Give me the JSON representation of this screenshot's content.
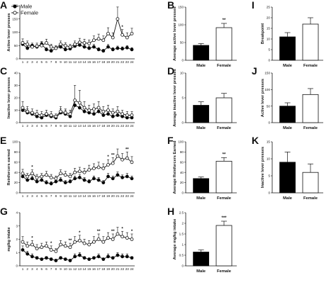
{
  "legend": [
    {
      "label": "Male",
      "marker": "filled-circle"
    },
    {
      "label": "Female",
      "marker": "open-circle"
    }
  ],
  "colors": {
    "male": "#000000",
    "female": "#ffffff",
    "axis": "#111111"
  },
  "chart_data": [
    {
      "panel": "A",
      "type": "line",
      "ylabel": "Active lever presses",
      "x": [
        1,
        2,
        3,
        4,
        5,
        6,
        7,
        8,
        9,
        10,
        11,
        12,
        13,
        14,
        15,
        16,
        17,
        18,
        19,
        20,
        21,
        22,
        23,
        24
      ],
      "ylim": [
        0,
        200
      ],
      "yticks": [
        0,
        50,
        100,
        150,
        200
      ],
      "series": [
        {
          "name": "Male",
          "values": [
            55,
            40,
            50,
            45,
            55,
            35,
            30,
            40,
            45,
            35,
            38,
            48,
            52,
            45,
            40,
            45,
            35,
            30,
            45,
            35,
            40,
            38,
            42,
            35
          ],
          "errors": [
            10,
            8,
            9,
            8,
            10,
            7,
            6,
            8,
            9,
            7,
            8,
            9,
            10,
            9,
            8,
            9,
            7,
            6,
            9,
            7,
            8,
            7,
            8,
            7
          ]
        },
        {
          "name": "Female",
          "values": [
            60,
            55,
            45,
            48,
            50,
            60,
            45,
            40,
            55,
            50,
            45,
            55,
            62,
            60,
            58,
            70,
            75,
            70,
            95,
            80,
            150,
            90,
            80,
            95
          ],
          "errors": [
            15,
            12,
            10,
            11,
            12,
            14,
            10,
            9,
            12,
            11,
            10,
            12,
            15,
            14,
            13,
            16,
            18,
            16,
            22,
            18,
            45,
            20,
            18,
            20
          ]
        }
      ],
      "annotations": [
        {
          "x": 22,
          "text": "*"
        }
      ]
    },
    {
      "panel": "B",
      "type": "bar",
      "ylabel": "Average active lever presses",
      "categories": [
        "Male",
        "Female"
      ],
      "values": [
        42,
        92
      ],
      "errors": [
        5,
        12
      ],
      "ylim": [
        0,
        150
      ],
      "yticks": [
        0,
        50,
        100,
        150
      ],
      "annotation": "**"
    },
    {
      "panel": "C",
      "type": "line",
      "ylabel": "Inactive lever presses",
      "x": [
        1,
        2,
        3,
        4,
        5,
        6,
        7,
        8,
        9,
        10,
        11,
        12,
        13,
        14,
        15,
        16,
        17,
        18,
        19,
        20,
        21,
        22,
        23,
        24
      ],
      "ylim": [
        0,
        40
      ],
      "yticks": [
        0,
        10,
        20,
        30,
        40
      ],
      "series": [
        {
          "name": "Male",
          "values": [
            10,
            8,
            7,
            5,
            4,
            6,
            5,
            4,
            8,
            7,
            5,
            14,
            12,
            9,
            8,
            7,
            9,
            6,
            7,
            5,
            6,
            5,
            4,
            4
          ],
          "errors": [
            3,
            3,
            2,
            2,
            2,
            2,
            2,
            2,
            3,
            3,
            2,
            4,
            4,
            3,
            3,
            2,
            3,
            2,
            3,
            2,
            2,
            2,
            2,
            2
          ]
        },
        {
          "name": "Female",
          "values": [
            12,
            9,
            8,
            7,
            6,
            7,
            6,
            5,
            9,
            8,
            7,
            18,
            16,
            12,
            10,
            11,
            12,
            9,
            10,
            8,
            9,
            7,
            6,
            6
          ],
          "errors": [
            5,
            4,
            3,
            3,
            3,
            3,
            3,
            2,
            4,
            3,
            3,
            12,
            10,
            5,
            4,
            4,
            5,
            4,
            4,
            3,
            4,
            3,
            3,
            3
          ]
        }
      ],
      "annotations": []
    },
    {
      "panel": "D",
      "type": "bar",
      "ylabel": "Average inactive lever presses",
      "categories": [
        "Male",
        "Female"
      ],
      "values": [
        3.5,
        5
      ],
      "errors": [
        0.7,
        0.9
      ],
      "ylim": [
        0,
        10
      ],
      "yticks": [
        0,
        5,
        10
      ],
      "annotation": ""
    },
    {
      "panel": "E",
      "type": "line",
      "ylabel": "Reinforcers earned",
      "x": [
        1,
        2,
        3,
        4,
        5,
        6,
        7,
        8,
        9,
        10,
        11,
        12,
        13,
        14,
        15,
        16,
        17,
        18,
        19,
        20,
        21,
        22,
        23,
        24
      ],
      "ylim": [
        0,
        100
      ],
      "yticks": [
        0,
        20,
        40,
        60,
        80,
        100
      ],
      "series": [
        {
          "name": "Male",
          "values": [
            32,
            25,
            28,
            22,
            25,
            20,
            18,
            22,
            25,
            20,
            22,
            28,
            30,
            25,
            22,
            28,
            25,
            20,
            32,
            28,
            35,
            30,
            32,
            28
          ],
          "errors": [
            6,
            5,
            5,
            4,
            5,
            4,
            4,
            4,
            5,
            4,
            4,
            5,
            6,
            5,
            4,
            5,
            5,
            4,
            6,
            5,
            6,
            5,
            6,
            5
          ]
        },
        {
          "name": "Female",
          "values": [
            38,
            32,
            38,
            30,
            32,
            35,
            30,
            28,
            38,
            35,
            32,
            40,
            42,
            40,
            45,
            48,
            50,
            48,
            55,
            58,
            72,
            65,
            68,
            60
          ],
          "errors": [
            8,
            6,
            7,
            6,
            6,
            7,
            6,
            5,
            7,
            7,
            6,
            8,
            8,
            8,
            9,
            9,
            10,
            9,
            10,
            11,
            14,
            12,
            12,
            11
          ]
        }
      ],
      "annotations": [
        {
          "x": 3,
          "text": "*"
        },
        {
          "x": 19,
          "text": "*"
        },
        {
          "x": 20,
          "text": "**"
        },
        {
          "x": 23,
          "text": "**"
        }
      ]
    },
    {
      "panel": "F",
      "type": "bar",
      "ylabel": "Average Reinforcers Earned",
      "categories": [
        "Male",
        "Female"
      ],
      "values": [
        28,
        62
      ],
      "errors": [
        3,
        7
      ],
      "ylim": [
        0,
        100
      ],
      "yticks": [
        0,
        20,
        40,
        60,
        80,
        100
      ],
      "annotation": "**"
    },
    {
      "panel": "G",
      "type": "line",
      "ylabel": "mg/kg intake",
      "x": [
        1,
        2,
        3,
        4,
        5,
        6,
        7,
        8,
        9,
        10,
        11,
        12,
        13,
        14,
        15,
        16,
        17,
        18,
        19,
        20,
        21,
        22,
        23,
        24
      ],
      "ylim": [
        0,
        4
      ],
      "yticks": [
        0,
        1,
        2,
        3,
        4
      ],
      "series": [
        {
          "name": "Male",
          "values": [
            1.2,
            0.9,
            0.7,
            0.6,
            0.5,
            0.6,
            0.5,
            0.4,
            0.6,
            0.5,
            0.4,
            0.7,
            0.8,
            0.6,
            0.5,
            0.6,
            0.7,
            0.5,
            0.7,
            0.6,
            0.8,
            0.7,
            0.7,
            0.6
          ],
          "errors": [
            0.3,
            0.2,
            0.2,
            0.1,
            0.1,
            0.1,
            0.1,
            0.1,
            0.1,
            0.1,
            0.1,
            0.2,
            0.2,
            0.1,
            0.1,
            0.1,
            0.2,
            0.1,
            0.2,
            0.1,
            0.2,
            0.2,
            0.2,
            0.1
          ]
        },
        {
          "name": "Female",
          "values": [
            1.8,
            1.5,
            1.6,
            1.3,
            1.4,
            1.5,
            1.2,
            1.1,
            1.6,
            1.5,
            1.4,
            1.8,
            1.9,
            1.7,
            1.6,
            1.8,
            2.0,
            1.8,
            2.1,
            2.0,
            2.4,
            2.2,
            2.1,
            2.0
          ],
          "errors": [
            0.4,
            0.3,
            0.3,
            0.3,
            0.3,
            0.3,
            0.3,
            0.2,
            0.3,
            0.3,
            0.3,
            0.4,
            0.4,
            0.3,
            0.3,
            0.4,
            0.4,
            0.4,
            0.4,
            0.4,
            0.5,
            0.4,
            0.4,
            0.4
          ]
        }
      ],
      "annotations": [
        {
          "x": 3,
          "text": "*"
        },
        {
          "x": 7,
          "text": "*"
        },
        {
          "x": 11,
          "text": "**"
        },
        {
          "x": 13,
          "text": "*"
        },
        {
          "x": 17,
          "text": "**"
        },
        {
          "x": 20,
          "text": "**"
        },
        {
          "x": 22,
          "text": "*"
        },
        {
          "x": 24,
          "text": "*"
        }
      ]
    },
    {
      "panel": "H",
      "type": "bar",
      "ylabel": "Average mg/kg intake",
      "categories": [
        "Male",
        "Female"
      ],
      "values": [
        0.65,
        1.9
      ],
      "errors": [
        0.1,
        0.2
      ],
      "ylim": [
        0,
        2.5
      ],
      "yticks": [
        0,
        0.5,
        1.0,
        1.5,
        2.0,
        2.5
      ],
      "annotation": "***"
    },
    {
      "panel": "I",
      "type": "bar",
      "ylabel": "Breakpoint",
      "categories": [
        "Male",
        "Female"
      ],
      "values": [
        11,
        17
      ],
      "errors": [
        2,
        3
      ],
      "ylim": [
        0,
        25
      ],
      "yticks": [
        0,
        5,
        10,
        15,
        20,
        25
      ],
      "annotation": ""
    },
    {
      "panel": "J",
      "type": "bar",
      "ylabel": "Active lever presses",
      "categories": [
        "Male",
        "Female"
      ],
      "values": [
        50,
        85
      ],
      "errors": [
        10,
        18
      ],
      "ylim": [
        0,
        150
      ],
      "yticks": [
        0,
        50,
        100,
        150
      ],
      "annotation": ""
    },
    {
      "panel": "K",
      "type": "bar",
      "ylabel": "Inactive lever presses",
      "categories": [
        "Male",
        "Female"
      ],
      "values": [
        9,
        6
      ],
      "errors": [
        3,
        2.5
      ],
      "ylim": [
        0,
        15
      ],
      "yticks": [
        0,
        5,
        10,
        15
      ],
      "annotation": ""
    }
  ]
}
